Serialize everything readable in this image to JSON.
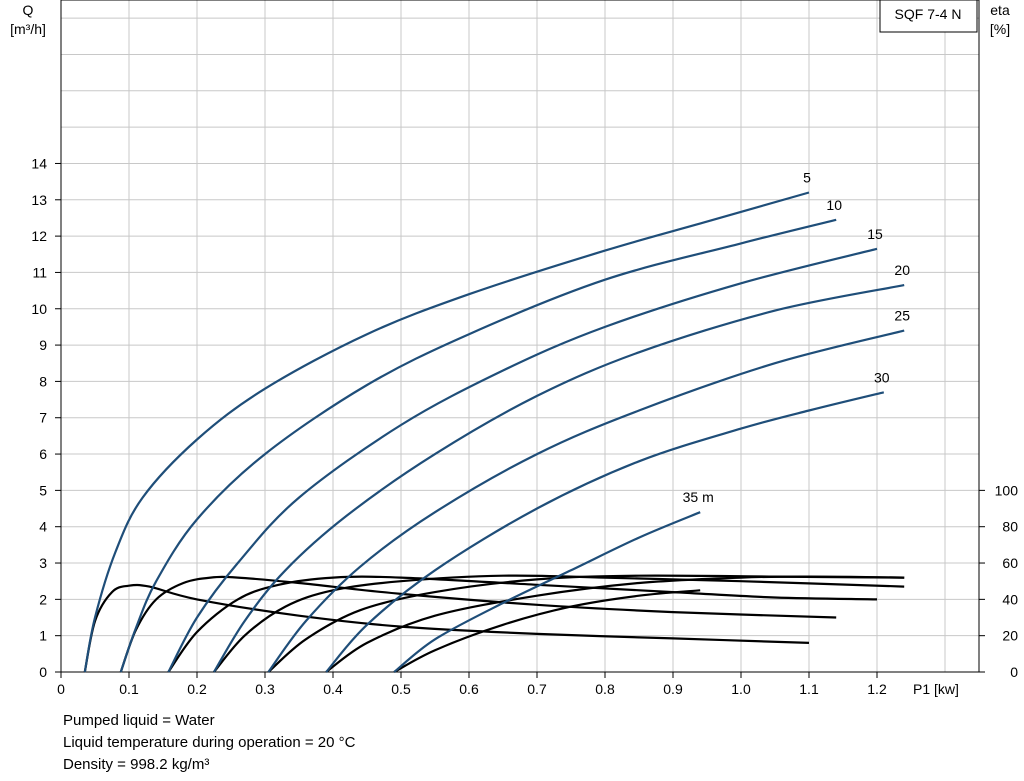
{
  "model_label": "SQF 7-4 N",
  "notes": [
    "Pumped liquid = Water",
    "Liquid temperature during operation = 20 °C",
    "Density = 998.2 kg/m³"
  ],
  "colors": {
    "flow": "#1f4e79",
    "efficiency": "#000000",
    "grid": "#c8c8c8"
  },
  "chart_data": {
    "type": "line",
    "xlabel": "P1 [kw]",
    "ylabel_left": [
      "Q",
      "[m³/h]"
    ],
    "ylabel_right": [
      "eta",
      "[%]"
    ],
    "xlim": [
      0,
      1.35
    ],
    "ylim_left": [
      0,
      18.5
    ],
    "ylim_right": [
      0,
      370
    ],
    "x_ticks": [
      "0",
      "0.1",
      "0.2",
      "0.3",
      "0.4",
      "0.5",
      "0.6",
      "0.7",
      "0.8",
      "0.9",
      "1.0",
      "1.1",
      "1.2"
    ],
    "y_left_ticks": [
      "0",
      "1",
      "2",
      "3",
      "4",
      "5",
      "6",
      "7",
      "8",
      "9",
      "10",
      "11",
      "12",
      "13",
      "14"
    ],
    "y_right_ticks": [
      "0",
      "20",
      "40",
      "60",
      "80",
      "100"
    ],
    "grid": true,
    "flow_series": [
      {
        "name": "5",
        "points": [
          [
            0.035,
            0
          ],
          [
            0.05,
            1.5
          ],
          [
            0.08,
            3.3
          ],
          [
            0.12,
            4.8
          ],
          [
            0.2,
            6.4
          ],
          [
            0.3,
            7.8
          ],
          [
            0.45,
            9.3
          ],
          [
            0.6,
            10.4
          ],
          [
            0.8,
            11.6
          ],
          [
            0.95,
            12.4
          ],
          [
            1.1,
            13.2
          ]
        ]
      },
      {
        "name": "10",
        "points": [
          [
            0.088,
            0
          ],
          [
            0.11,
            1.2
          ],
          [
            0.14,
            2.5
          ],
          [
            0.2,
            4.2
          ],
          [
            0.3,
            6.0
          ],
          [
            0.45,
            7.9
          ],
          [
            0.6,
            9.3
          ],
          [
            0.8,
            10.8
          ],
          [
            1.0,
            11.8
          ],
          [
            1.14,
            12.45
          ]
        ]
      },
      {
        "name": "15",
        "points": [
          [
            0.158,
            0
          ],
          [
            0.2,
            1.5
          ],
          [
            0.26,
            3.0
          ],
          [
            0.35,
            4.8
          ],
          [
            0.5,
            6.8
          ],
          [
            0.65,
            8.3
          ],
          [
            0.8,
            9.5
          ],
          [
            1.0,
            10.7
          ],
          [
            1.2,
            11.65
          ]
        ]
      },
      {
        "name": "20",
        "points": [
          [
            0.225,
            0
          ],
          [
            0.27,
            1.4
          ],
          [
            0.33,
            2.8
          ],
          [
            0.42,
            4.3
          ],
          [
            0.55,
            6.0
          ],
          [
            0.7,
            7.6
          ],
          [
            0.85,
            8.8
          ],
          [
            1.05,
            9.95
          ],
          [
            1.24,
            10.65
          ]
        ]
      },
      {
        "name": "25",
        "points": [
          [
            0.305,
            0
          ],
          [
            0.36,
            1.4
          ],
          [
            0.44,
            2.9
          ],
          [
            0.55,
            4.4
          ],
          [
            0.7,
            6.0
          ],
          [
            0.85,
            7.2
          ],
          [
            1.05,
            8.5
          ],
          [
            1.24,
            9.4
          ]
        ]
      },
      {
        "name": "30",
        "points": [
          [
            0.39,
            0
          ],
          [
            0.45,
            1.3
          ],
          [
            0.55,
            2.8
          ],
          [
            0.7,
            4.5
          ],
          [
            0.85,
            5.8
          ],
          [
            1.0,
            6.7
          ],
          [
            1.1,
            7.2
          ],
          [
            1.21,
            7.7
          ]
        ]
      },
      {
        "name": "35 m",
        "points": [
          [
            0.49,
            0
          ],
          [
            0.55,
            0.9
          ],
          [
            0.65,
            1.9
          ],
          [
            0.75,
            2.8
          ],
          [
            0.85,
            3.7
          ],
          [
            0.94,
            4.4
          ]
        ]
      }
    ],
    "efficiency_series": [
      {
        "points": [
          [
            0.035,
            0
          ],
          [
            0.05,
            28
          ],
          [
            0.075,
            44
          ],
          [
            0.1,
            47.5
          ],
          [
            0.13,
            47
          ],
          [
            0.2,
            40
          ],
          [
            0.35,
            31
          ],
          [
            0.5,
            25
          ],
          [
            0.7,
            21
          ],
          [
            0.9,
            18.5
          ],
          [
            1.1,
            16
          ]
        ]
      },
      {
        "points": [
          [
            0.088,
            0
          ],
          [
            0.11,
            23
          ],
          [
            0.14,
            40
          ],
          [
            0.18,
            49
          ],
          [
            0.22,
            52
          ],
          [
            0.26,
            52
          ],
          [
            0.35,
            49
          ],
          [
            0.5,
            43
          ],
          [
            0.7,
            37
          ],
          [
            0.9,
            33
          ],
          [
            1.14,
            30
          ]
        ]
      },
      {
        "points": [
          [
            0.158,
            0
          ],
          [
            0.2,
            22
          ],
          [
            0.26,
            40
          ],
          [
            0.32,
            48
          ],
          [
            0.4,
            52
          ],
          [
            0.5,
            52
          ],
          [
            0.7,
            48
          ],
          [
            0.9,
            44
          ],
          [
            1.05,
            41
          ],
          [
            1.2,
            40
          ]
        ]
      },
      {
        "points": [
          [
            0.225,
            0
          ],
          [
            0.27,
            20
          ],
          [
            0.33,
            36
          ],
          [
            0.4,
            45
          ],
          [
            0.5,
            50
          ],
          [
            0.65,
            53
          ],
          [
            0.8,
            52
          ],
          [
            1.0,
            50
          ],
          [
            1.24,
            47
          ]
        ]
      },
      {
        "points": [
          [
            0.305,
            0
          ],
          [
            0.36,
            18
          ],
          [
            0.44,
            34
          ],
          [
            0.55,
            44
          ],
          [
            0.7,
            51
          ],
          [
            0.85,
            53
          ],
          [
            1.05,
            52.5
          ],
          [
            1.24,
            52
          ]
        ]
      },
      {
        "points": [
          [
            0.39,
            0
          ],
          [
            0.45,
            16
          ],
          [
            0.55,
            31
          ],
          [
            0.7,
            42
          ],
          [
            0.85,
            49
          ],
          [
            1.0,
            52
          ],
          [
            1.1,
            52.5
          ],
          [
            1.24,
            52
          ]
        ]
      },
      {
        "points": [
          [
            0.49,
            0
          ],
          [
            0.55,
            12
          ],
          [
            0.65,
            26
          ],
          [
            0.75,
            36
          ],
          [
            0.85,
            42
          ],
          [
            0.94,
            45
          ]
        ]
      }
    ]
  }
}
